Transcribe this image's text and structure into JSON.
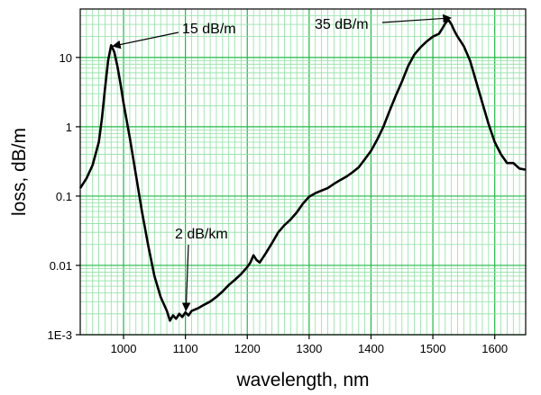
{
  "chart_data": {
    "type": "line",
    "title": "",
    "xlabel": "wavelength, nm",
    "ylabel": "loss, dB/m",
    "xlim": [
      930,
      1650
    ],
    "ylim": [
      0.001,
      50
    ],
    "yscale": "log",
    "grid": true,
    "legend": "none",
    "colors": {
      "major_grid": "#22b845",
      "minor_grid": "#8fe0a4",
      "line": "#000000",
      "axes": "#000000"
    },
    "x_ticks": [
      1000,
      1100,
      1200,
      1300,
      1400,
      1500,
      1600
    ],
    "x_tick_labels": [
      "1000",
      "1100",
      "1200",
      "1300",
      "1400",
      "1500",
      "1600"
    ],
    "y_ticks": [
      0.001,
      0.01,
      0.1,
      1,
      10
    ],
    "y_tick_labels": [
      "1E-3",
      "0.01",
      "0.1",
      "1",
      "10"
    ],
    "series": [
      {
        "x": [
          930,
          940,
          950,
          960,
          965,
          970,
          975,
          980,
          985,
          990,
          995,
          1000,
          1010,
          1020,
          1030,
          1040,
          1050,
          1060,
          1070,
          1075,
          1080,
          1085,
          1090,
          1095,
          1100,
          1105,
          1110,
          1120,
          1130,
          1140,
          1150,
          1160,
          1170,
          1180,
          1190,
          1200,
          1205,
          1210,
          1215,
          1220,
          1230,
          1240,
          1250,
          1260,
          1270,
          1280,
          1290,
          1300,
          1310,
          1320,
          1330,
          1340,
          1350,
          1360,
          1370,
          1380,
          1390,
          1400,
          1410,
          1420,
          1430,
          1440,
          1450,
          1460,
          1470,
          1480,
          1490,
          1500,
          1510,
          1515,
          1520,
          1525,
          1530,
          1535,
          1540,
          1545,
          1550,
          1560,
          1570,
          1580,
          1590,
          1600,
          1610,
          1620,
          1630,
          1640,
          1650
        ],
        "y": [
          0.13,
          0.18,
          0.28,
          0.6,
          1.3,
          3.5,
          9,
          15,
          12,
          7.5,
          4.2,
          2.2,
          0.7,
          0.2,
          0.058,
          0.019,
          0.007,
          0.0035,
          0.0022,
          0.0016,
          0.0019,
          0.0017,
          0.002,
          0.0018,
          0.0021,
          0.0019,
          0.0022,
          0.0024,
          0.0027,
          0.003,
          0.0035,
          0.0042,
          0.0052,
          0.0062,
          0.0075,
          0.0095,
          0.011,
          0.014,
          0.012,
          0.011,
          0.015,
          0.021,
          0.03,
          0.038,
          0.046,
          0.058,
          0.078,
          0.098,
          0.11,
          0.12,
          0.13,
          0.15,
          0.17,
          0.19,
          0.22,
          0.26,
          0.34,
          0.45,
          0.65,
          1.0,
          1.7,
          2.8,
          4.5,
          7.5,
          11,
          14,
          17,
          20,
          22,
          26,
          31,
          35,
          30,
          24,
          20,
          17,
          14.5,
          9,
          4.5,
          2.2,
          1.1,
          0.6,
          0.4,
          0.3,
          0.3,
          0.25,
          0.24
        ]
      }
    ],
    "annotations": [
      {
        "text": "15 dB/m",
        "x": 980,
        "y": 15
      },
      {
        "text": "35 dB/m",
        "x": 1533,
        "y": 35
      },
      {
        "text": "2 dB/km",
        "x": 1098,
        "y": 0.002
      }
    ]
  }
}
